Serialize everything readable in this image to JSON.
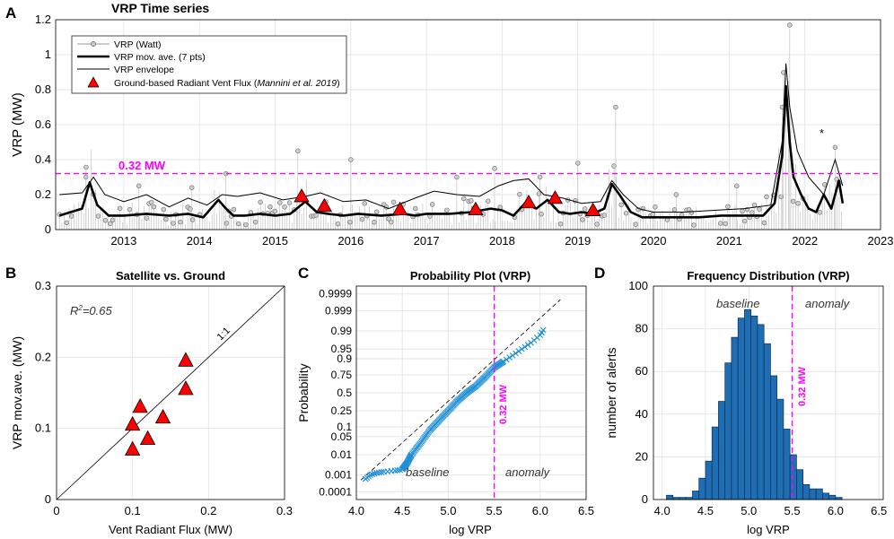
{
  "colors": {
    "threshold": "#ff00ff",
    "ground": "#ff0000",
    "bar": "#1f6db2",
    "qq": "#1f8fd6",
    "raw": "#9a9a9a",
    "grid": "#e6e6e6"
  },
  "chart_data": [
    {
      "panel": "A",
      "type": "line",
      "title": "VRP Time series",
      "ylabel": "VRP (MW)",
      "xlabel": "",
      "xlim": [
        2012.1,
        2023.0
      ],
      "ylim": [
        0,
        1.2
      ],
      "xticks": [
        "2013",
        "2014",
        "2015",
        "2016",
        "2017",
        "2018",
        "2019",
        "2020",
        "2021",
        "2022",
        "2023"
      ],
      "yticks": [
        "0",
        "0.2",
        "0.4",
        "0.6",
        "0.8",
        "1",
        "1.2"
      ],
      "threshold": {
        "value": 0.32,
        "label": "0.32 MW"
      },
      "annotation": "*",
      "annotation_xy": [
        2022.3,
        0.57
      ],
      "legend": {
        "placement": "top-left",
        "items": [
          "VRP (Watt)",
          "VRP mov. ave. (7 pts)",
          "VRP envelope",
          "Ground-based Radiant Vent Flux (",
          "Mannini et al. 2019",
          ")"
        ]
      },
      "series": [
        {
          "name": "VRP mov. ave. (7 pts)",
          "x": [
            2012.15,
            2012.3,
            2012.45,
            2012.55,
            2012.65,
            2012.8,
            2013.0,
            2013.3,
            2013.6,
            2013.85,
            2014.05,
            2014.25,
            2014.35,
            2014.45,
            2014.6,
            2014.8,
            2015.0,
            2015.2,
            2015.4,
            2015.55,
            2015.7,
            2015.9,
            2016.1,
            2016.4,
            2016.7,
            2016.85,
            2017.0,
            2017.3,
            2017.6,
            2017.85,
            2018.0,
            2018.15,
            2018.3,
            2018.45,
            2018.6,
            2018.75,
            2018.9,
            2019.05,
            2019.2,
            2019.35,
            2019.45,
            2019.55,
            2019.7,
            2019.85,
            2020.0,
            2020.3,
            2020.6,
            2020.9,
            2021.2,
            2021.45,
            2021.6,
            2021.7,
            2021.75,
            2021.8,
            2021.85,
            2021.95,
            2022.05,
            2022.15,
            2022.25,
            2022.35,
            2022.45,
            2022.5
          ],
          "values": [
            0.08,
            0.1,
            0.12,
            0.27,
            0.14,
            0.08,
            0.08,
            0.09,
            0.08,
            0.09,
            0.07,
            0.17,
            0.12,
            0.08,
            0.08,
            0.09,
            0.08,
            0.09,
            0.16,
            0.1,
            0.09,
            0.08,
            0.09,
            0.08,
            0.09,
            0.08,
            0.09,
            0.09,
            0.1,
            0.12,
            0.11,
            0.08,
            0.15,
            0.12,
            0.17,
            0.1,
            0.09,
            0.1,
            0.09,
            0.12,
            0.26,
            0.2,
            0.1,
            0.07,
            0.07,
            0.07,
            0.07,
            0.08,
            0.08,
            0.08,
            0.15,
            0.42,
            0.82,
            0.5,
            0.3,
            0.2,
            0.12,
            0.1,
            0.2,
            0.12,
            0.28,
            0.15
          ]
        },
        {
          "name": "VRP envelope",
          "x": [
            2012.15,
            2012.45,
            2012.6,
            2012.75,
            2013.0,
            2013.3,
            2013.6,
            2013.85,
            2014.1,
            2014.3,
            2014.5,
            2014.8,
            2015.1,
            2015.4,
            2015.6,
            2015.9,
            2016.2,
            2016.5,
            2016.85,
            2017.1,
            2017.4,
            2017.7,
            2017.95,
            2018.15,
            2018.35,
            2018.55,
            2018.8,
            2019.05,
            2019.3,
            2019.45,
            2019.6,
            2019.8,
            2020.0,
            2020.4,
            2020.8,
            2021.2,
            2021.55,
            2021.7,
            2021.75,
            2021.8,
            2021.9,
            2022.05,
            2022.25,
            2022.4,
            2022.5
          ],
          "values": [
            0.2,
            0.21,
            0.3,
            0.2,
            0.16,
            0.2,
            0.13,
            0.18,
            0.14,
            0.2,
            0.19,
            0.21,
            0.17,
            0.19,
            0.21,
            0.16,
            0.17,
            0.12,
            0.18,
            0.22,
            0.2,
            0.19,
            0.25,
            0.28,
            0.29,
            0.2,
            0.18,
            0.15,
            0.16,
            0.28,
            0.2,
            0.12,
            0.1,
            0.1,
            0.11,
            0.12,
            0.14,
            0.5,
            0.95,
            0.7,
            0.45,
            0.3,
            0.2,
            0.4,
            0.25
          ]
        },
        {
          "name": "Ground-based Radiant Vent Flux",
          "x": [
            2015.35,
            2015.65,
            2016.65,
            2017.65,
            2018.35,
            2018.7,
            2019.2
          ],
          "values": [
            0.19,
            0.135,
            0.115,
            0.115,
            0.155,
            0.18,
            0.11
          ]
        }
      ],
      "raw_points": {
        "x": [
          2012.5,
          2013.2,
          2013.9,
          2014.35,
          2015.3,
          2016.0,
          2017.4,
          2017.9,
          2018.5,
          2019.0,
          2019.5,
          2020.3,
          2021.1,
          2021.7,
          2021.8,
          2022.4
        ],
        "values": [
          0.3,
          0.25,
          0.24,
          0.32,
          0.45,
          0.4,
          0.3,
          0.35,
          0.3,
          0.38,
          0.7,
          0.2,
          0.25,
          0.7,
          1.17,
          0.47
        ]
      }
    },
    {
      "panel": "B",
      "type": "scatter",
      "title": "Satellite vs. Ground",
      "xlabel": "Vent Radiant Flux (MW)",
      "ylabel": "VRP mov.ave. (MW)",
      "xlim": [
        0,
        0.3
      ],
      "ylim": [
        0,
        0.3
      ],
      "xticks": [
        "0",
        "0.1",
        "0.2",
        "0.3"
      ],
      "yticks": [
        "0",
        "0.1",
        "0.2",
        "0.3"
      ],
      "r2_prefix": "R",
      "r2_sup": "2",
      "r2_suffix": "=0.65",
      "line_label": "1:1",
      "x": [
        0.1,
        0.1,
        0.11,
        0.12,
        0.14,
        0.17,
        0.17
      ],
      "values": [
        0.07,
        0.105,
        0.13,
        0.085,
        0.115,
        0.155,
        0.195
      ]
    },
    {
      "panel": "C",
      "type": "scatter",
      "title": "Probability Plot (VRP)",
      "xlabel": "log VRP",
      "ylabel": "Probability",
      "xlim": [
        4.0,
        6.5
      ],
      "xticks": [
        "4.0",
        "4.5",
        "5.0",
        "5.5",
        "6.0",
        "6.5"
      ],
      "yticks": [
        "0.0001",
        "0.001",
        "0.01",
        "0.05",
        "0.1",
        "0.25",
        "0.5",
        "0.75",
        "0.9",
        "0.95",
        "0.99",
        "0.999",
        "0.9999"
      ],
      "threshold": {
        "value": 5.5,
        "label": "0.32 MW"
      },
      "region_left": "baseline",
      "region_right": "anomaly",
      "x": [
        4.1,
        4.15,
        4.22,
        4.3,
        4.42,
        4.5,
        4.55,
        4.6,
        4.7,
        4.8,
        4.9,
        5.0,
        5.1,
        5.2,
        5.3,
        5.4,
        5.5,
        5.6,
        5.7,
        5.8,
        5.9,
        6.0,
        6.05
      ],
      "probabilities": [
        0.0006,
        0.001,
        0.0013,
        0.0015,
        0.0017,
        0.002,
        0.004,
        0.01,
        0.03,
        0.08,
        0.15,
        0.25,
        0.38,
        0.5,
        0.6,
        0.72,
        0.83,
        0.88,
        0.92,
        0.95,
        0.97,
        0.985,
        0.993
      ]
    },
    {
      "panel": "D",
      "type": "bar",
      "title": "Frequency Distribution (VRP)",
      "xlabel": "log VRP",
      "ylabel": "number of alerts",
      "xlim": [
        3.9,
        6.55
      ],
      "ylim": [
        0,
        100
      ],
      "xticks": [
        "4.0",
        "4.5",
        "5.0",
        "5.5",
        "6.0",
        "6.5"
      ],
      "yticks": [
        "0",
        "20",
        "40",
        "60",
        "80",
        "100"
      ],
      "threshold": {
        "value": 5.5,
        "label": "0.32 MW"
      },
      "region_left": "baseline",
      "region_right": "anomaly",
      "bin_width": 0.075,
      "bin_starts": [
        4.05,
        4.125,
        4.2,
        4.275,
        4.35,
        4.425,
        4.5,
        4.575,
        4.65,
        4.725,
        4.8,
        4.875,
        4.95,
        5.025,
        5.1,
        5.175,
        5.25,
        5.325,
        5.4,
        5.475,
        5.55,
        5.625,
        5.7,
        5.775,
        5.85,
        5.925,
        6.0,
        6.075,
        6.15,
        6.225,
        6.3,
        6.375
      ],
      "values": [
        2,
        1,
        1,
        1,
        4,
        10,
        18,
        34,
        46,
        64,
        76,
        85,
        89,
        86,
        82,
        73,
        58,
        47,
        33,
        21,
        14,
        7,
        5,
        5,
        3,
        2,
        1,
        0,
        0,
        0,
        0,
        0
      ]
    }
  ],
  "panel_labels": [
    "A",
    "B",
    "C",
    "D"
  ]
}
